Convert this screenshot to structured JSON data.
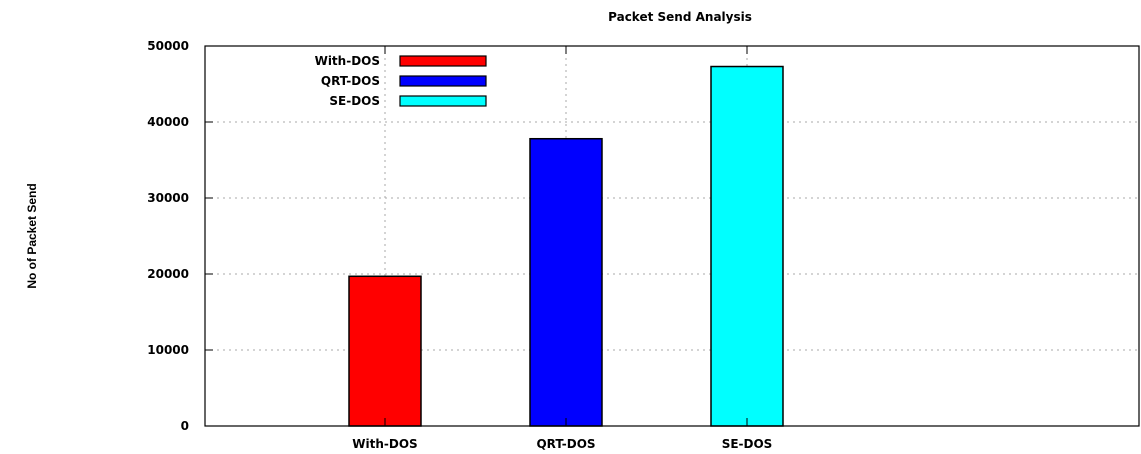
{
  "chart_data": {
    "type": "bar",
    "title": "Packet Send Analysis",
    "xlabel": "",
    "ylabel": "No of Packet Send",
    "categories": [
      "With-DOS",
      "QRT-DOS",
      "SE-DOS"
    ],
    "values": [
      19700,
      37800,
      47300
    ],
    "colors": [
      "#ff0000",
      "#0000ff",
      "#00ffff"
    ],
    "ylim": [
      0,
      50000
    ],
    "yticks": [
      "0",
      "10000",
      "20000",
      "30000",
      "40000",
      "50000"
    ],
    "grid": true,
    "legend": {
      "placement": "top-left",
      "entries": [
        "With-DOS",
        "QRT-DOS",
        "SE-DOS"
      ]
    }
  }
}
